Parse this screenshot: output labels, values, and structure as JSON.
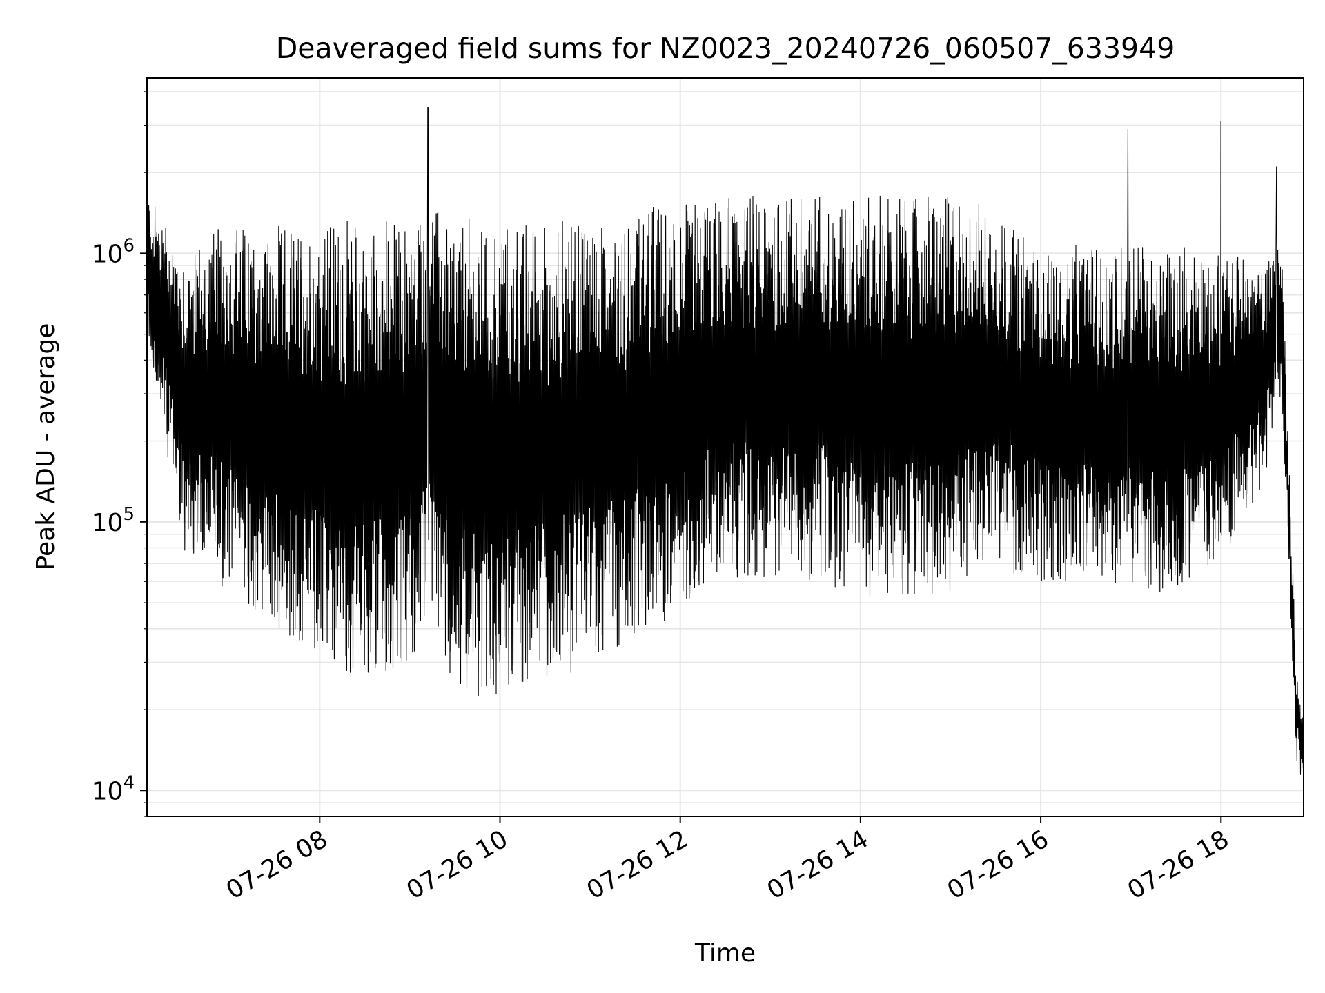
{
  "chart_data": {
    "type": "line",
    "title": "Deaveraged field sums for NZ0023_20240726_060507_633949",
    "xlabel": "Time",
    "ylabel": "Peak ADU - average",
    "y_scale": "log",
    "xlim": [
      "07-26 06:05",
      "07-26 18:55"
    ],
    "ylim": [
      8000,
      4500000
    ],
    "grid": true,
    "x_ticks": [
      "07-26 08",
      "07-26 10",
      "07-26 12",
      "07-26 14",
      "07-26 16",
      "07-26 18"
    ],
    "y_ticks": [
      {
        "base": "10",
        "exp": "4",
        "value": 10000
      },
      {
        "base": "10",
        "exp": "5",
        "value": 100000
      },
      {
        "base": "10",
        "exp": "6",
        "value": 1000000
      }
    ],
    "line_color": "#000000",
    "envelope": {
      "time": [
        "07-26 06:05",
        "07-26 06:30",
        "07-26 07:00",
        "07-26 07:30",
        "07-26 08:00",
        "07-26 08:30",
        "07-26 09:00",
        "07-26 09:15",
        "07-26 09:30",
        "07-26 10:00",
        "07-26 10:30",
        "07-26 11:00",
        "07-26 11:30",
        "07-26 12:00",
        "07-26 12:30",
        "07-26 13:00",
        "07-26 13:30",
        "07-26 14:00",
        "07-26 14:30",
        "07-26 15:00",
        "07-26 15:30",
        "07-26 16:00",
        "07-26 16:30",
        "07-26 17:00",
        "07-26 17:30",
        "07-26 18:00",
        "07-26 18:30",
        "07-26 18:40",
        "07-26 18:50",
        "07-26 18:55"
      ],
      "upper": [
        1700000,
        1000000,
        1300000,
        1200000,
        1300000,
        1300000,
        1300000,
        1500000,
        1300000,
        1300000,
        1300000,
        1350000,
        1450000,
        1550000,
        1600000,
        1650000,
        1650000,
        1650000,
        1650000,
        1650000,
        1400000,
        1100000,
        1000000,
        1100000,
        1050000,
        1000000,
        900000,
        1300000,
        30000,
        18000
      ],
      "lower": [
        500000,
        75000,
        55000,
        40000,
        30000,
        25000,
        28000,
        45000,
        25000,
        22000,
        25000,
        30000,
        35000,
        50000,
        65000,
        65000,
        60000,
        55000,
        52000,
        55000,
        70000,
        60000,
        60000,
        55000,
        55000,
        70000,
        150000,
        300000,
        13000,
        11000
      ]
    },
    "spikes": [
      {
        "time": "07-26 09:12",
        "value": 3500000
      },
      {
        "time": "07-26 16:58",
        "value": 2900000
      },
      {
        "time": "07-26 18:00",
        "value": 3100000
      },
      {
        "time": "07-26 18:37",
        "value": 2100000
      }
    ]
  }
}
